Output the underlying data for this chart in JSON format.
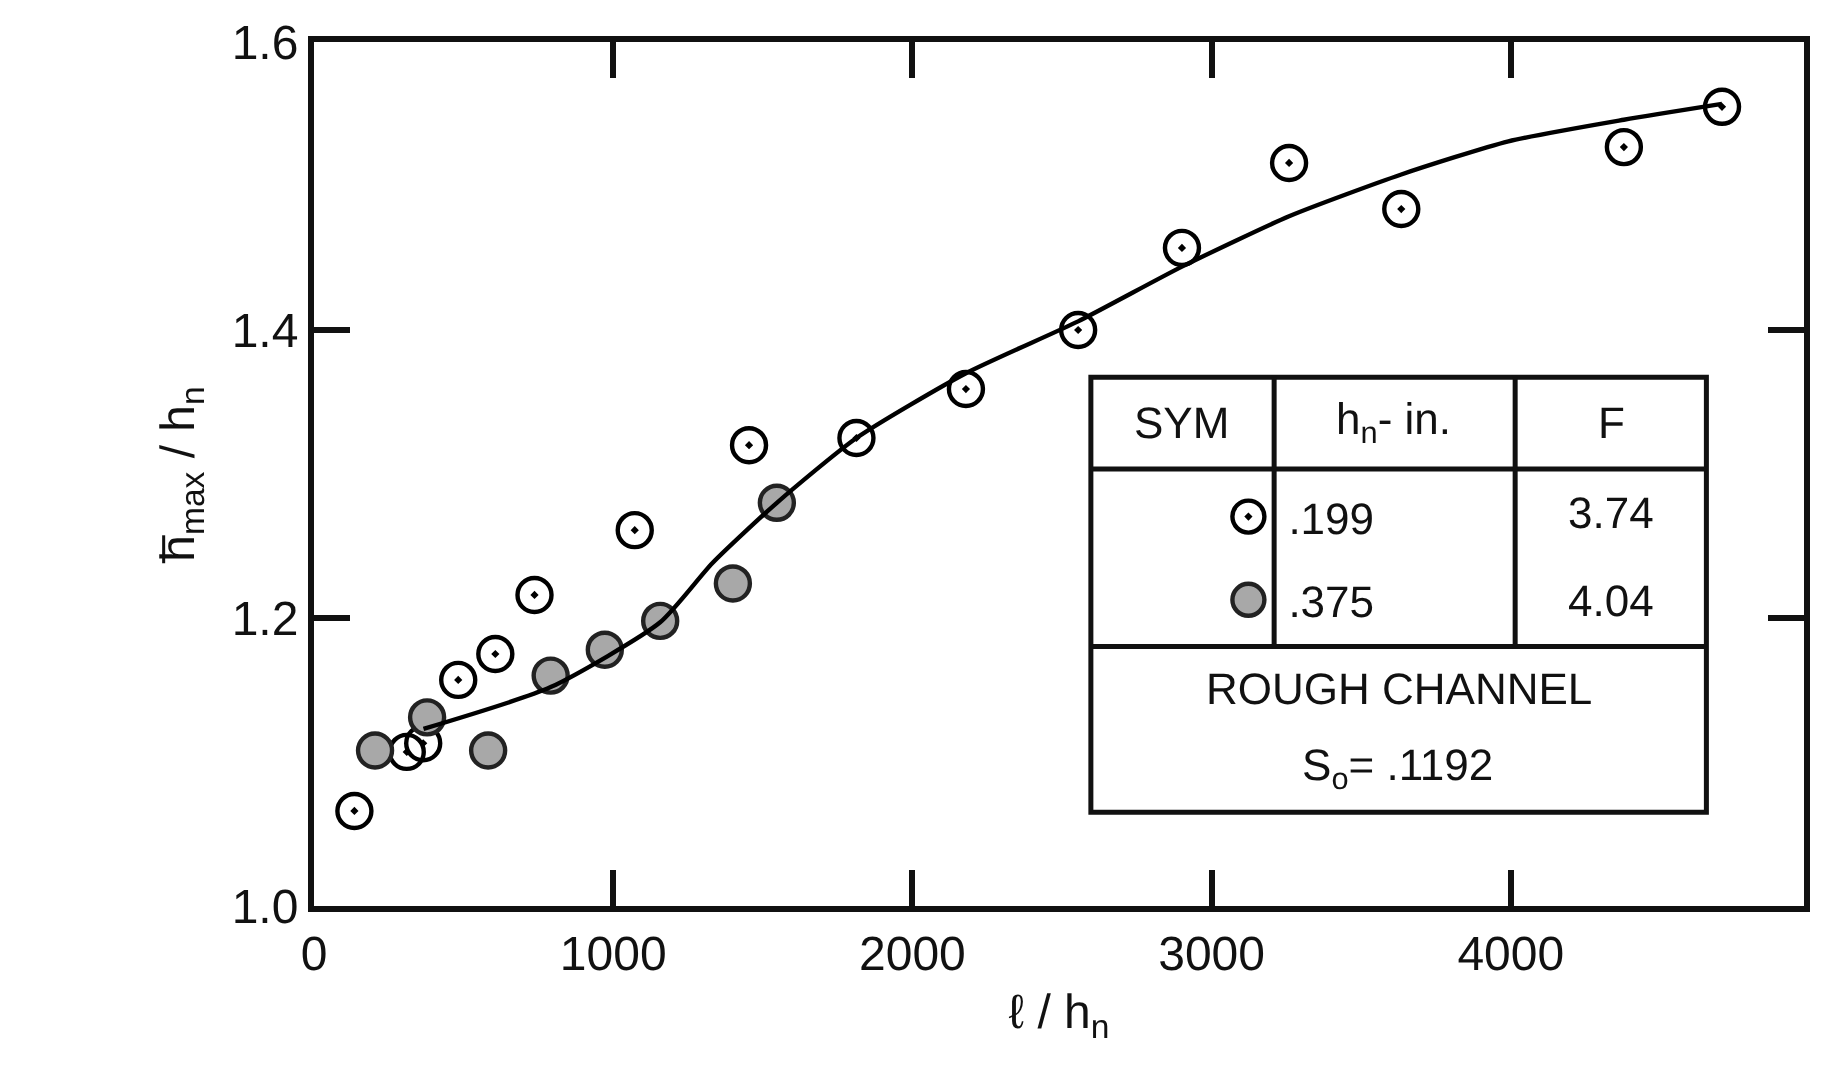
{
  "chart_data": {
    "type": "scatter",
    "xlabel": "ℓ / h$_{n}$",
    "ylabel": "h̅$_{max}$ / h$_{n}$",
    "xlim": [
      0,
      4980
    ],
    "xticks": [
      0,
      1000,
      2000,
      3000,
      4000
    ],
    "ylim": [
      1.0,
      1.6
    ],
    "yticks": [
      {
        "value": 1.0,
        "label": "1.0"
      },
      {
        "value": 1.2,
        "label": "1.2"
      },
      {
        "value": 1.4,
        "label": "1.4"
      },
      {
        "value": 1.6,
        "label": "1.6"
      }
    ],
    "legend": "bottom right",
    "marker": "circle",
    "series": [
      {
        "name": ".199",
        "color": "#000000",
        "x": [
          135,
          310,
          365,
          482,
          606,
          737,
          1072,
          1454,
          1813,
          2179,
          2554,
          2901,
          3259,
          3634,
          4378,
          4706
        ],
        "values": [
          1.066,
          1.107,
          1.113,
          1.157,
          1.175,
          1.216,
          1.261,
          1.32,
          1.325,
          1.359,
          1.4,
          1.457,
          1.516,
          1.484,
          1.527,
          1.555
        ]
      },
      {
        "name": ".375",
        "color": "#a8a8a8",
        "x": [
          204,
          378,
          582,
          791,
          972,
          1157,
          1400,
          1547
        ],
        "values": [
          1.108,
          1.131,
          1.108,
          1.16,
          1.178,
          1.198,
          1.224,
          1.28
        ]
      },
      {
        "type": "line",
        "color": "#000000",
        "marker": "none",
        "line_style": "solid",
        "x": [
          366,
          791,
          1157,
          1331,
          1547,
          1813,
          2179,
          2554,
          2901,
          3259,
          3634,
          3992,
          4378,
          4706
        ],
        "values": [
          1.123,
          1.152,
          1.197,
          1.238,
          1.28,
          1.325,
          1.37,
          1.406,
          1.444,
          1.479,
          1.508,
          1.531,
          1.546,
          1.557
        ]
      }
    ],
    "annotations": [
      "SYM",
      "h$_{n}$- in.",
      "F",
      "3.74",
      "4.04",
      "ROUGH CHANNEL",
      "S$_{o}$= .1192"
    ]
  }
}
